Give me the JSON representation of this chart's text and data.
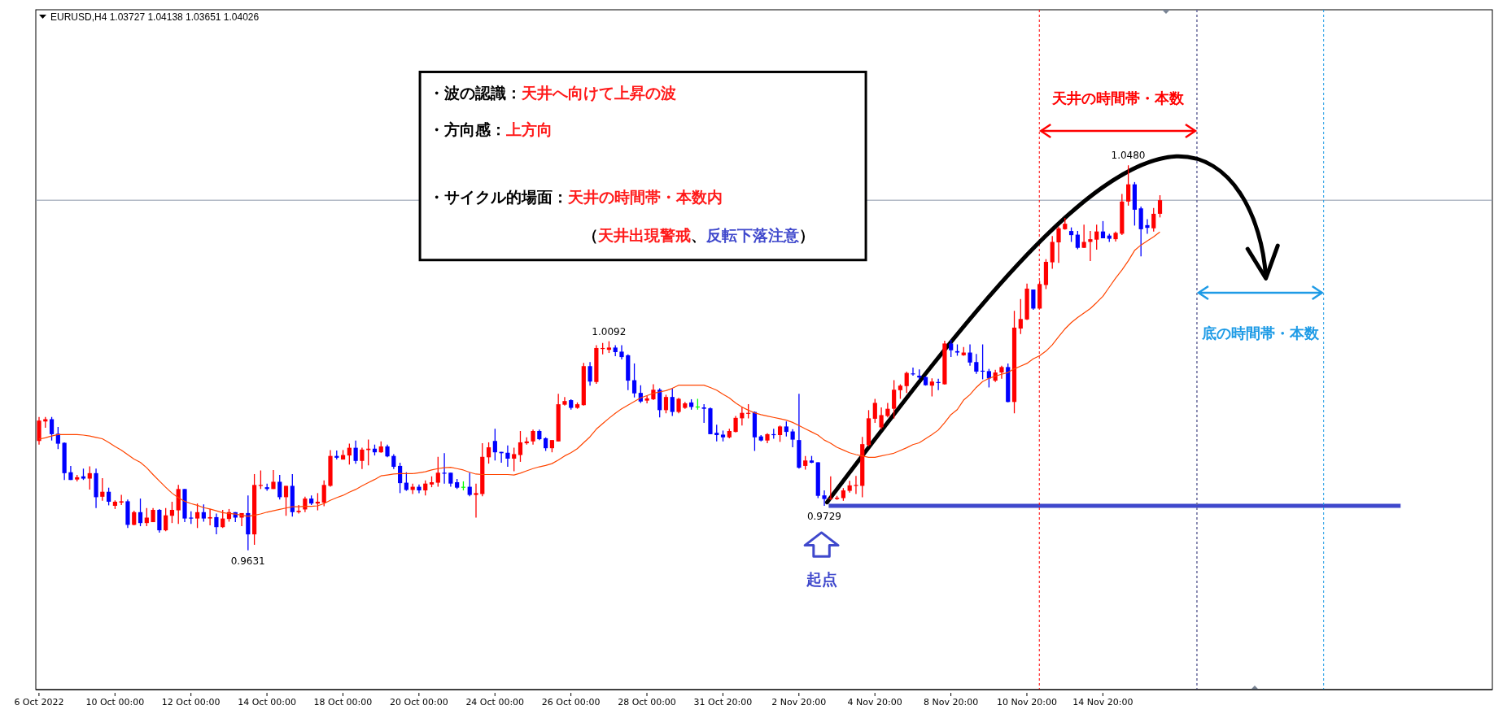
{
  "chart_data": {
    "type": "candlestick",
    "title": "EURUSD,H4 1.03727 1.04138 1.03651 1.04026",
    "categories": [
      "6 Oct 2022",
      null,
      null,
      null,
      null,
      null,
      null,
      null,
      null,
      null,
      null,
      null,
      "10 Oct 00:00",
      null,
      null,
      null,
      null,
      null,
      null,
      null,
      null,
      null,
      null,
      null,
      "12 Oct 00:00",
      null,
      null,
      null,
      null,
      null,
      null,
      null,
      null,
      null,
      null,
      null,
      "14 Oct 00:00",
      null,
      null,
      null,
      null,
      null,
      null,
      null,
      null,
      null,
      null,
      null,
      "18 Oct 00:00",
      null,
      null,
      null,
      null,
      null,
      null,
      null,
      null,
      null,
      null,
      null,
      "20 Oct 00:00",
      null,
      null,
      null,
      null,
      null,
      null,
      null,
      null,
      null,
      null,
      null,
      "24 Oct 00:00",
      null,
      null,
      null,
      null,
      null,
      null,
      null,
      null,
      null,
      null,
      null,
      "26 Oct 00:00",
      null,
      null,
      null,
      null,
      null,
      null,
      null,
      null,
      null,
      null,
      null,
      "28 Oct 00:00",
      null,
      null,
      null,
      null,
      null,
      null,
      null,
      null,
      null,
      null,
      null,
      "31 Oct 20:00",
      null,
      null,
      null,
      null,
      null,
      null,
      null,
      null,
      null,
      null,
      null,
      "2 Nov 20:00",
      null,
      null,
      null,
      null,
      null,
      null,
      null,
      null,
      null,
      null,
      null,
      "4 Nov 20:00",
      null,
      null,
      null,
      null,
      null,
      null,
      null,
      null,
      null,
      null,
      null,
      "8 Nov 20:00",
      null,
      null,
      null,
      null,
      null,
      null,
      null,
      null,
      null,
      null,
      null,
      "10 Nov 20:00",
      null,
      null,
      null,
      null,
      null,
      null,
      null,
      null,
      null,
      null,
      null,
      "14 Nov 20:00",
      null,
      null,
      null,
      null,
      null,
      null,
      null,
      null,
      null,
      null,
      null,
      null,
      null,
      null,
      null,
      null,
      null,
      null,
      null,
      null,
      null,
      null,
      null,
      null,
      null,
      null,
      null,
      null,
      null,
      null,
      null,
      null,
      null,
      null,
      null,
      null,
      null,
      null,
      null,
      null,
      null,
      null,
      null,
      null,
      null,
      null,
      null,
      null,
      null,
      null,
      null,
      null,
      null,
      null,
      null,
      null,
      null,
      null,
      null,
      null,
      null
    ],
    "ohlc": [
      [
        0.9872,
        0.9925,
        0.9864,
        0.9917
      ],
      [
        0.9915,
        0.9925,
        0.9901,
        0.992
      ],
      [
        0.992,
        0.9925,
        0.9873,
        0.9887
      ],
      [
        0.9888,
        0.9903,
        0.9854,
        0.9866
      ],
      [
        0.9868,
        0.9869,
        0.9786,
        0.9801
      ],
      [
        0.9803,
        0.9817,
        0.9786,
        0.9786
      ],
      [
        0.9787,
        0.9797,
        0.9783,
        0.9792
      ],
      [
        0.9794,
        0.9811,
        0.9786,
        0.9789
      ],
      [
        0.9789,
        0.9816,
        0.9765,
        0.9801
      ],
      [
        0.9801,
        0.9811,
        0.9724,
        0.9748
      ],
      [
        0.9749,
        0.979,
        0.974,
        0.976
      ],
      [
        0.976,
        0.9769,
        0.973,
        0.9738
      ],
      [
        0.9729,
        0.9741,
        0.9722,
        0.9738
      ],
      [
        0.9736,
        0.9753,
        0.9731,
        0.9739
      ],
      [
        0.9739,
        0.9743,
        0.968,
        0.9687
      ],
      [
        0.9687,
        0.9718,
        0.9686,
        0.9715
      ],
      [
        0.9715,
        0.9745,
        0.9684,
        0.9691
      ],
      [
        0.9691,
        0.9724,
        0.9684,
        0.9703
      ],
      [
        0.9693,
        0.9724,
        0.9693,
        0.972
      ],
      [
        0.972,
        0.9722,
        0.967,
        0.9675
      ],
      [
        0.9675,
        0.9724,
        0.9673,
        0.9708
      ],
      [
        0.9707,
        0.9738,
        0.9691,
        0.972
      ],
      [
        0.9719,
        0.9775,
        0.9689,
        0.9766
      ],
      [
        0.9766,
        0.9766,
        0.9693,
        0.9701
      ],
      [
        0.9703,
        0.9717,
        0.9689,
        0.9701
      ],
      [
        0.9701,
        0.9734,
        0.968,
        0.9715
      ],
      [
        0.9715,
        0.9732,
        0.9694,
        0.9701
      ],
      [
        0.9701,
        0.9722,
        0.9686,
        0.9704
      ],
      [
        0.9704,
        0.9712,
        0.9666,
        0.9682
      ],
      [
        0.9682,
        0.972,
        0.968,
        0.9701
      ],
      [
        0.97,
        0.9722,
        0.9694,
        0.9715
      ],
      [
        0.9715,
        0.9715,
        0.9693,
        0.9703
      ],
      [
        0.9703,
        0.9713,
        0.9684,
        0.9713
      ],
      [
        0.9713,
        0.9752,
        0.9631,
        0.9666
      ],
      [
        0.9666,
        0.9799,
        0.9643,
        0.9775
      ],
      [
        0.9773,
        0.9807,
        0.9766,
        0.9775
      ],
      [
        0.977,
        0.9778,
        0.9762,
        0.9766
      ],
      [
        0.9766,
        0.9808,
        0.9766,
        0.9782
      ],
      [
        0.9782,
        0.9797,
        0.9743,
        0.9748
      ],
      [
        0.9748,
        0.9773,
        0.9707,
        0.9773
      ],
      [
        0.9773,
        0.9799,
        0.9705,
        0.9715
      ],
      [
        0.9715,
        0.9731,
        0.9712,
        0.9718
      ],
      [
        0.9721,
        0.9749,
        0.9715,
        0.9745
      ],
      [
        0.9745,
        0.9752,
        0.9731,
        0.9734
      ],
      [
        0.9734,
        0.9757,
        0.9719,
        0.9738
      ],
      [
        0.9736,
        0.9785,
        0.9728,
        0.9775
      ],
      [
        0.9773,
        0.9852,
        0.9771,
        0.9839
      ],
      [
        0.9839,
        0.9851,
        0.9831,
        0.9835
      ],
      [
        0.9831,
        0.9852,
        0.9831,
        0.9841
      ],
      [
        0.984,
        0.9866,
        0.982,
        0.9857
      ],
      [
        0.9857,
        0.9873,
        0.9822,
        0.9828
      ],
      [
        0.9828,
        0.9857,
        0.981,
        0.9853
      ],
      [
        0.9852,
        0.9875,
        0.9818,
        0.9855
      ],
      [
        0.9855,
        0.9864,
        0.984,
        0.9847
      ],
      [
        0.9847,
        0.9871,
        0.9846,
        0.986
      ],
      [
        0.986,
        0.9864,
        0.9836,
        0.9838
      ],
      [
        0.9839,
        0.9843,
        0.981,
        0.9815
      ],
      [
        0.9817,
        0.9824,
        0.9757,
        0.9779
      ],
      [
        0.978,
        0.9803,
        0.9762,
        0.9764
      ],
      [
        0.9764,
        0.9778,
        0.9755,
        0.9771
      ],
      [
        0.9771,
        0.9776,
        0.9757,
        0.9763
      ],
      [
        0.9763,
        0.9785,
        0.9752,
        0.9778
      ],
      [
        0.9776,
        0.9794,
        0.977,
        0.9781
      ],
      [
        0.978,
        0.9837,
        0.9771,
        0.9802
      ],
      [
        0.9802,
        0.9845,
        0.9778,
        0.9801
      ],
      [
        0.9802,
        0.9802,
        0.9771,
        0.9778
      ],
      [
        0.9781,
        0.9788,
        0.9766,
        0.9769
      ],
      [
        0.9771,
        0.9783,
        0.9763,
        0.9771
      ],
      [
        0.9771,
        0.9802,
        0.975,
        0.9753
      ],
      [
        0.9753,
        0.9778,
        0.9703,
        0.9757
      ],
      [
        0.9755,
        0.9867,
        0.975,
        0.9837
      ],
      [
        0.9836,
        0.9869,
        0.9822,
        0.9858
      ],
      [
        0.9872,
        0.9899,
        0.9829,
        0.9847
      ],
      [
        0.9848,
        0.9848,
        0.9824,
        0.9845
      ],
      [
        0.9846,
        0.9862,
        0.9815,
        0.9833
      ],
      [
        0.9833,
        0.9857,
        0.9805,
        0.9843
      ],
      [
        0.9841,
        0.9894,
        0.9826,
        0.9869
      ],
      [
        0.9867,
        0.988,
        0.9864,
        0.9871
      ],
      [
        0.9871,
        0.9897,
        0.9864,
        0.9894
      ],
      [
        0.9894,
        0.9897,
        0.9874,
        0.9876
      ],
      [
        0.9878,
        0.988,
        0.985,
        0.9856
      ],
      [
        0.9856,
        0.9874,
        0.9847,
        0.9874
      ],
      [
        0.9871,
        0.9976,
        0.9871,
        0.9953
      ],
      [
        0.9952,
        0.9969,
        0.995,
        0.996
      ],
      [
        0.9962,
        0.9964,
        0.9941,
        0.9945
      ],
      [
        0.9945,
        0.9957,
        0.9943,
        0.9953
      ],
      [
        0.9951,
        1.0044,
        0.995,
        1.0037
      ],
      [
        1.0037,
        1.0046,
        0.9994,
        1.0003
      ],
      [
        1.0002,
        1.0083,
        0.9998,
        1.0077
      ],
      [
        1.0075,
        1.0088,
        1.0063,
        1.0077
      ],
      [
        1.0073,
        1.0092,
        1.0066,
        1.0078
      ],
      [
        1.0078,
        1.0083,
        1.0059,
        1.0068
      ],
      [
        1.0069,
        1.0083,
        1.0052,
        1.0057
      ],
      [
        1.0061,
        1.0063,
        0.9984,
        1.0005
      ],
      [
        1.0006,
        1.0043,
        0.9968,
        0.9977
      ],
      [
        0.9978,
        0.9995,
        0.9956,
        0.9959
      ],
      [
        0.9961,
        0.9971,
        0.9955,
        0.9966
      ],
      [
        0.9964,
        0.9997,
        0.9962,
        0.9985
      ],
      [
        0.9985,
        0.9988,
        0.9924,
        0.994
      ],
      [
        0.994,
        0.9974,
        0.9933,
        0.9969
      ],
      [
        0.9969,
        0.9988,
        0.9927,
        0.9936
      ],
      [
        0.9936,
        0.9967,
        0.9933,
        0.9965
      ],
      [
        0.9945,
        0.9958,
        0.9943,
        0.9955
      ],
      [
        0.9957,
        0.9964,
        0.9941,
        0.9947
      ],
      [
        0.9948,
        0.9965,
        0.9941,
        0.9948
      ],
      [
        0.9946,
        0.9953,
        0.9912,
        0.9943
      ],
      [
        0.9944,
        0.9946,
        0.9887,
        0.9887
      ],
      [
        0.989,
        0.9908,
        0.9871,
        0.9885
      ],
      [
        0.9886,
        0.9895,
        0.9871,
        0.988
      ],
      [
        0.988,
        0.9899,
        0.9878,
        0.9894
      ],
      [
        0.9892,
        0.9927,
        0.9891,
        0.9923
      ],
      [
        0.9922,
        0.9948,
        0.9906,
        0.9934
      ],
      [
        0.9933,
        0.9953,
        0.9922,
        0.9934
      ],
      [
        0.9936,
        0.9937,
        0.985,
        0.988
      ],
      [
        0.9882,
        0.9885,
        0.9871,
        0.9873
      ],
      [
        0.9873,
        0.9889,
        0.9867,
        0.9887
      ],
      [
        0.9887,
        0.9899,
        0.9877,
        0.9886
      ],
      [
        0.9885,
        0.9906,
        0.987,
        0.9904
      ],
      [
        0.9904,
        0.9915,
        0.9882,
        0.9892
      ],
      [
        0.9893,
        0.9898,
        0.9858,
        0.9875
      ],
      [
        0.9874,
        0.9976,
        0.9811,
        0.9813
      ],
      [
        0.9817,
        0.9839,
        0.9809,
        0.9829
      ],
      [
        0.9829,
        0.9839,
        0.9823,
        0.9824
      ],
      [
        0.9825,
        0.9825,
        0.9746,
        0.9751
      ],
      [
        0.9752,
        0.9763,
        0.9729,
        0.9744
      ],
      [
        0.9744,
        0.9794,
        0.9742,
        0.9746
      ],
      [
        0.9744,
        0.9751,
        0.9742,
        0.9747
      ],
      [
        0.9746,
        0.9768,
        0.974,
        0.9763
      ],
      [
        0.9762,
        0.9784,
        0.9758,
        0.9774
      ],
      [
        0.9773,
        0.9795,
        0.9755,
        0.9775
      ],
      [
        0.9773,
        0.9881,
        0.9748,
        0.9865
      ],
      [
        0.9863,
        0.994,
        0.986,
        0.9922
      ],
      [
        0.9921,
        0.9965,
        0.9912,
        0.9956
      ],
      [
        0.9902,
        0.9946,
        0.9898,
        0.9929
      ],
      [
        0.9927,
        0.9956,
        0.9924,
        0.9943
      ],
      [
        0.9943,
        1.0006,
        0.9922,
        0.9985
      ],
      [
        0.9984,
        0.9997,
        0.9965,
        0.9994
      ],
      [
        0.9993,
        1.0025,
        0.9978,
        1.0022
      ],
      [
        1.0021,
        1.0034,
        1.0016,
        1.0019
      ],
      [
        1.0016,
        1.003,
        1.0008,
        1.0012
      ],
      [
        1.0013,
        1.0015,
        0.9994,
        0.9995
      ],
      [
        0.9994,
        1.001,
        0.997,
        1.0003
      ],
      [
        1.0002,
        1.0009,
        0.9984,
        1.0
      ],
      [
        0.9997,
        1.0093,
        0.9996,
        1.0087
      ],
      [
        1.0087,
        1.0095,
        1.0057,
        1.0072
      ],
      [
        1.007,
        1.0085,
        1.006,
        1.0067
      ],
      [
        1.0061,
        1.0079,
        1.006,
        1.0067
      ],
      [
        1.0067,
        1.0085,
        1.0038,
        1.0045
      ],
      [
        1.0046,
        1.0064,
        1.002,
        1.0025
      ],
      [
        1.0027,
        1.0085,
        1.0008,
        1.0026
      ],
      [
        1.0026,
        1.0031,
        0.999,
        1.001
      ],
      [
        1.0005,
        1.0029,
        1.0002,
        1.0023
      ],
      [
        1.0023,
        1.0038,
        1.0009,
        1.0035
      ],
      [
        1.0035,
        1.0043,
        0.9957,
        0.9958
      ],
      [
        0.9958,
        1.0159,
        0.9933,
        1.0122
      ],
      [
        1.012,
        1.0185,
        1.0108,
        1.0141
      ],
      [
        1.014,
        1.0219,
        1.0139,
        1.0208
      ],
      [
        1.0206,
        1.0206,
        1.0161,
        1.0164
      ],
      [
        1.0164,
        1.0225,
        1.0164,
        1.0218
      ],
      [
        1.0216,
        1.0273,
        1.0207,
        1.0267
      ],
      [
        1.0266,
        1.0324,
        1.0252,
        1.0311
      ],
      [
        1.031,
        1.0345,
        1.0265,
        1.0341
      ],
      [
        1.0339,
        1.0364,
        1.0338,
        1.0351
      ],
      [
        1.0335,
        1.0343,
        1.0311,
        1.0326
      ],
      [
        1.0327,
        1.0335,
        1.0295,
        1.0298
      ],
      [
        1.0298,
        1.0349,
        1.0298,
        1.0311
      ],
      [
        1.0311,
        1.0335,
        1.0269,
        1.0317
      ],
      [
        1.0316,
        1.0349,
        1.0294,
        1.0334
      ],
      [
        1.0334,
        1.0357,
        1.0319,
        1.0319
      ],
      [
        1.0325,
        1.0329,
        1.0311,
        1.0318
      ],
      [
        1.0317,
        1.0334,
        1.0312,
        1.0331
      ],
      [
        1.0329,
        1.0417,
        1.0326,
        1.04
      ],
      [
        1.04,
        1.048,
        1.0391,
        1.0438
      ],
      [
        1.0438,
        1.0443,
        1.0347,
        1.0382
      ],
      [
        1.0385,
        1.0389,
        1.0279,
        1.0339
      ],
      [
        1.0348,
        1.0361,
        1.0329,
        1.0342
      ],
      [
        1.0341,
        1.0386,
        1.0334,
        1.0373
      ],
      [
        1.0373,
        1.0414,
        1.0365,
        1.0403
      ],
      null,
      null,
      null,
      null,
      null,
      null,
      null,
      null,
      null,
      null,
      null,
      null,
      null,
      null,
      null,
      null,
      null,
      null,
      null,
      null,
      null,
      null,
      null,
      null,
      null,
      null,
      null,
      null,
      null,
      null,
      null,
      null,
      null,
      null,
      null,
      null,
      null,
      null,
      null,
      null,
      null,
      null,
      null,
      null,
      null,
      null,
      null,
      null,
      null,
      null,
      null,
      null
    ],
    "colors": [
      "#ff0000",
      "#ff0000",
      "#0000ff",
      "#0000ff",
      "#0000ff",
      "#0000ff",
      "#ff0000",
      "#0000ff",
      "#ff0000",
      "#0000ff",
      "#ff0000",
      "#0000ff",
      "#ff0000",
      "#ff0000",
      "#0000ff",
      "#ff0000",
      "#0000ff",
      "#ff0000",
      "#ff0000",
      "#0000ff",
      "#ff0000",
      "#ff0000",
      "#ff0000",
      "#0000ff",
      "#0000ff",
      "#ff0000",
      "#0000ff",
      "#ff0000",
      "#0000ff",
      "#ff0000",
      "#ff0000",
      "#0000ff",
      "#ff0000",
      "#0000ff",
      "#ff0000",
      "#ff0000",
      "#0000ff",
      "#ff0000",
      "#0000ff",
      "#ff0000",
      "#0000ff",
      "#ff0000",
      "#ff0000",
      "#0000ff",
      "#ff0000",
      "#ff0000",
      "#ff0000",
      "#0000ff",
      "#ff0000",
      "#ff0000",
      "#0000ff",
      "#ff0000",
      "#ff0000",
      "#0000ff",
      "#ff0000",
      "#0000ff",
      "#0000ff",
      "#0000ff",
      "#0000ff",
      "#ff0000",
      "#0000ff",
      "#ff0000",
      "#ff0000",
      "#ff0000",
      "#0000ff",
      "#0000ff",
      "#0000ff",
      "#00ff00",
      "#0000ff",
      "#ff0000",
      "#ff0000",
      "#ff0000",
      "#0000ff",
      "#0000ff",
      "#0000ff",
      "#ff0000",
      "#ff0000",
      "#ff0000",
      "#ff0000",
      "#0000ff",
      "#0000ff",
      "#ff0000",
      "#ff0000",
      "#ff0000",
      "#0000ff",
      "#ff0000",
      "#ff0000",
      "#0000ff",
      "#ff0000",
      "#ff0000",
      "#ff0000",
      "#0000ff",
      "#0000ff",
      "#0000ff",
      "#0000ff",
      "#0000ff",
      "#ff0000",
      "#ff0000",
      "#0000ff",
      "#ff0000",
      "#0000ff",
      "#ff0000",
      "#ff0000",
      "#0000ff",
      "#00ff00",
      "#0000ff",
      "#0000ff",
      "#0000ff",
      "#0000ff",
      "#ff0000",
      "#ff0000",
      "#ff0000",
      "#ff0000",
      "#0000ff",
      "#0000ff",
      "#ff0000",
      "#0000ff",
      "#ff0000",
      "#0000ff",
      "#0000ff",
      "#0000ff",
      "#ff0000",
      "#0000ff",
      "#0000ff",
      "#0000ff",
      "#ff0000",
      "#ff0000",
      "#ff0000",
      "#ff0000",
      "#ff0000",
      "#ff0000",
      "#ff0000",
      "#ff0000",
      "#ff0000",
      "#ff0000",
      "#ff0000",
      "#ff0000",
      "#ff0000",
      "#0000ff",
      "#0000ff",
      "#0000ff",
      "#ff0000",
      "#0000ff",
      "#ff0000",
      "#0000ff",
      "#0000ff",
      "#ff0000",
      "#0000ff",
      "#0000ff",
      "#0000ff",
      "#0000ff",
      "#ff0000",
      "#ff0000",
      "#0000ff",
      "#ff0000",
      "#ff0000",
      "#ff0000",
      "#0000ff",
      "#ff0000",
      "#ff0000",
      "#ff0000",
      "#ff0000",
      "#ff0000",
      "#0000ff",
      "#0000ff",
      "#ff0000",
      "#ff0000",
      "#ff0000",
      "#0000ff",
      "#0000ff",
      "#ff0000",
      "#ff0000",
      "#ff0000",
      "#0000ff",
      "#0000ff",
      "#0000ff",
      "#ff0000",
      "#ff0000",
      null,
      null,
      null,
      null,
      null,
      null,
      null,
      null,
      null,
      null,
      null,
      null,
      null,
      null,
      null,
      null,
      null,
      null,
      null,
      null,
      null,
      null,
      null,
      null,
      null,
      null,
      null,
      null,
      null,
      null,
      null,
      null,
      null,
      null,
      null,
      null,
      null,
      null,
      null,
      null,
      null,
      null,
      null,
      null,
      null,
      null,
      null,
      null,
      null,
      null,
      null,
      null
    ],
    "series": [
      {
        "type": "line",
        "color": "#ff4500",
        "values": [
          0.9876,
          0.9879,
          0.9883,
          0.9886,
          0.9886,
          0.9886,
          0.9886,
          0.9885,
          0.9883,
          0.988,
          0.9877,
          0.9869,
          0.986,
          0.9852,
          0.9842,
          0.9832,
          0.9825,
          0.9813,
          0.9798,
          0.9784,
          0.977,
          0.9757,
          0.9747,
          0.9739,
          0.9734,
          0.973,
          0.9725,
          0.9722,
          0.9718,
          0.9714,
          0.9712,
          0.9711,
          0.9708,
          0.9706,
          0.9708,
          0.9711,
          0.9715,
          0.9718,
          0.9721,
          0.9724,
          0.9727,
          0.9727,
          0.9728,
          0.9728,
          0.9729,
          0.9734,
          0.9741,
          0.9747,
          0.9752,
          0.9759,
          0.9765,
          0.9773,
          0.978,
          0.9787,
          0.9795,
          0.9797,
          0.9799,
          0.98,
          0.98,
          0.98,
          0.9802,
          0.9804,
          0.9808,
          0.9811,
          0.9813,
          0.9814,
          0.9811,
          0.9808,
          0.9803,
          0.9799,
          0.9798,
          0.9798,
          0.9798,
          0.9798,
          0.9798,
          0.9797,
          0.9801,
          0.9806,
          0.9811,
          0.9815,
          0.9818,
          0.9822,
          0.983,
          0.9839,
          0.9846,
          0.9855,
          0.9868,
          0.9881,
          0.9898,
          0.991,
          0.9922,
          0.9933,
          0.9943,
          0.9951,
          0.9959,
          0.9967,
          0.9972,
          0.9977,
          0.998,
          0.9983,
          0.9988,
          0.9995,
          0.9995,
          0.9995,
          0.9995,
          0.9995,
          0.999,
          0.9984,
          0.9975,
          0.9967,
          0.9956,
          0.9947,
          0.994,
          0.9934,
          0.993,
          0.9927,
          0.9924,
          0.9921,
          0.9918,
          0.9913,
          0.9906,
          0.9899,
          0.9892,
          0.9885,
          0.9874,
          0.9867,
          0.9858,
          0.9852,
          0.9846,
          0.9842,
          0.9839,
          0.9836,
          0.9836,
          0.9839,
          0.9842,
          0.9845,
          0.9851,
          0.9857,
          0.9864,
          0.9868,
          0.9877,
          0.9886,
          0.9896,
          0.9912,
          0.993,
          0.9941,
          0.9962,
          0.9974,
          0.999,
          1.0003,
          1.001,
          1.0015,
          1.0019,
          1.0023,
          1.0031,
          1.0037,
          1.0043,
          1.0053,
          1.006,
          1.007,
          1.0084,
          1.0102,
          1.0119,
          1.0133,
          1.0144,
          1.0154,
          1.0164,
          1.0177,
          1.0191,
          1.0211,
          1.0231,
          1.0249,
          1.0269,
          1.0292,
          1.0304,
          1.0313,
          1.0322,
          1.0333,
          null,
          null,
          null,
          null,
          null,
          null,
          null,
          null,
          null,
          null,
          null,
          null,
          null,
          null,
          null,
          null,
          null,
          null,
          null,
          null,
          null,
          null,
          null,
          null,
          null,
          null,
          null,
          null,
          null,
          null,
          null,
          null,
          null,
          null,
          null,
          null,
          null,
          null,
          null,
          null,
          null,
          null,
          null,
          null,
          null,
          null,
          null,
          null,
          null,
          null,
          null,
          null
        ]
      }
    ],
    "ref_lines": [
      {
        "axis": "y",
        "value": 1.0403,
        "color": "#8c96aa"
      },
      {
        "axis": "y",
        "value": 0.9729,
        "color": "#3f48cc"
      }
    ],
    "annotations": [
      "・波の認識：天井へ向けて上昇の波",
      "・方向感：上方向",
      "・サイクル的場面：天井の時間帯・本数内",
      "（天井出現警戒、反転下落注意）",
      "起点",
      "天井の時間帯・本数",
      "底の時間帯・本数",
      {
        "text": "1.0480",
        "y": 1.048
      },
      {
        "text": "1.0092",
        "y": 1.0092
      },
      {
        "text": "0.9631",
        "y": 0.9631
      },
      {
        "text": "0.9729",
        "y": 0.9729
      }
    ]
  }
}
